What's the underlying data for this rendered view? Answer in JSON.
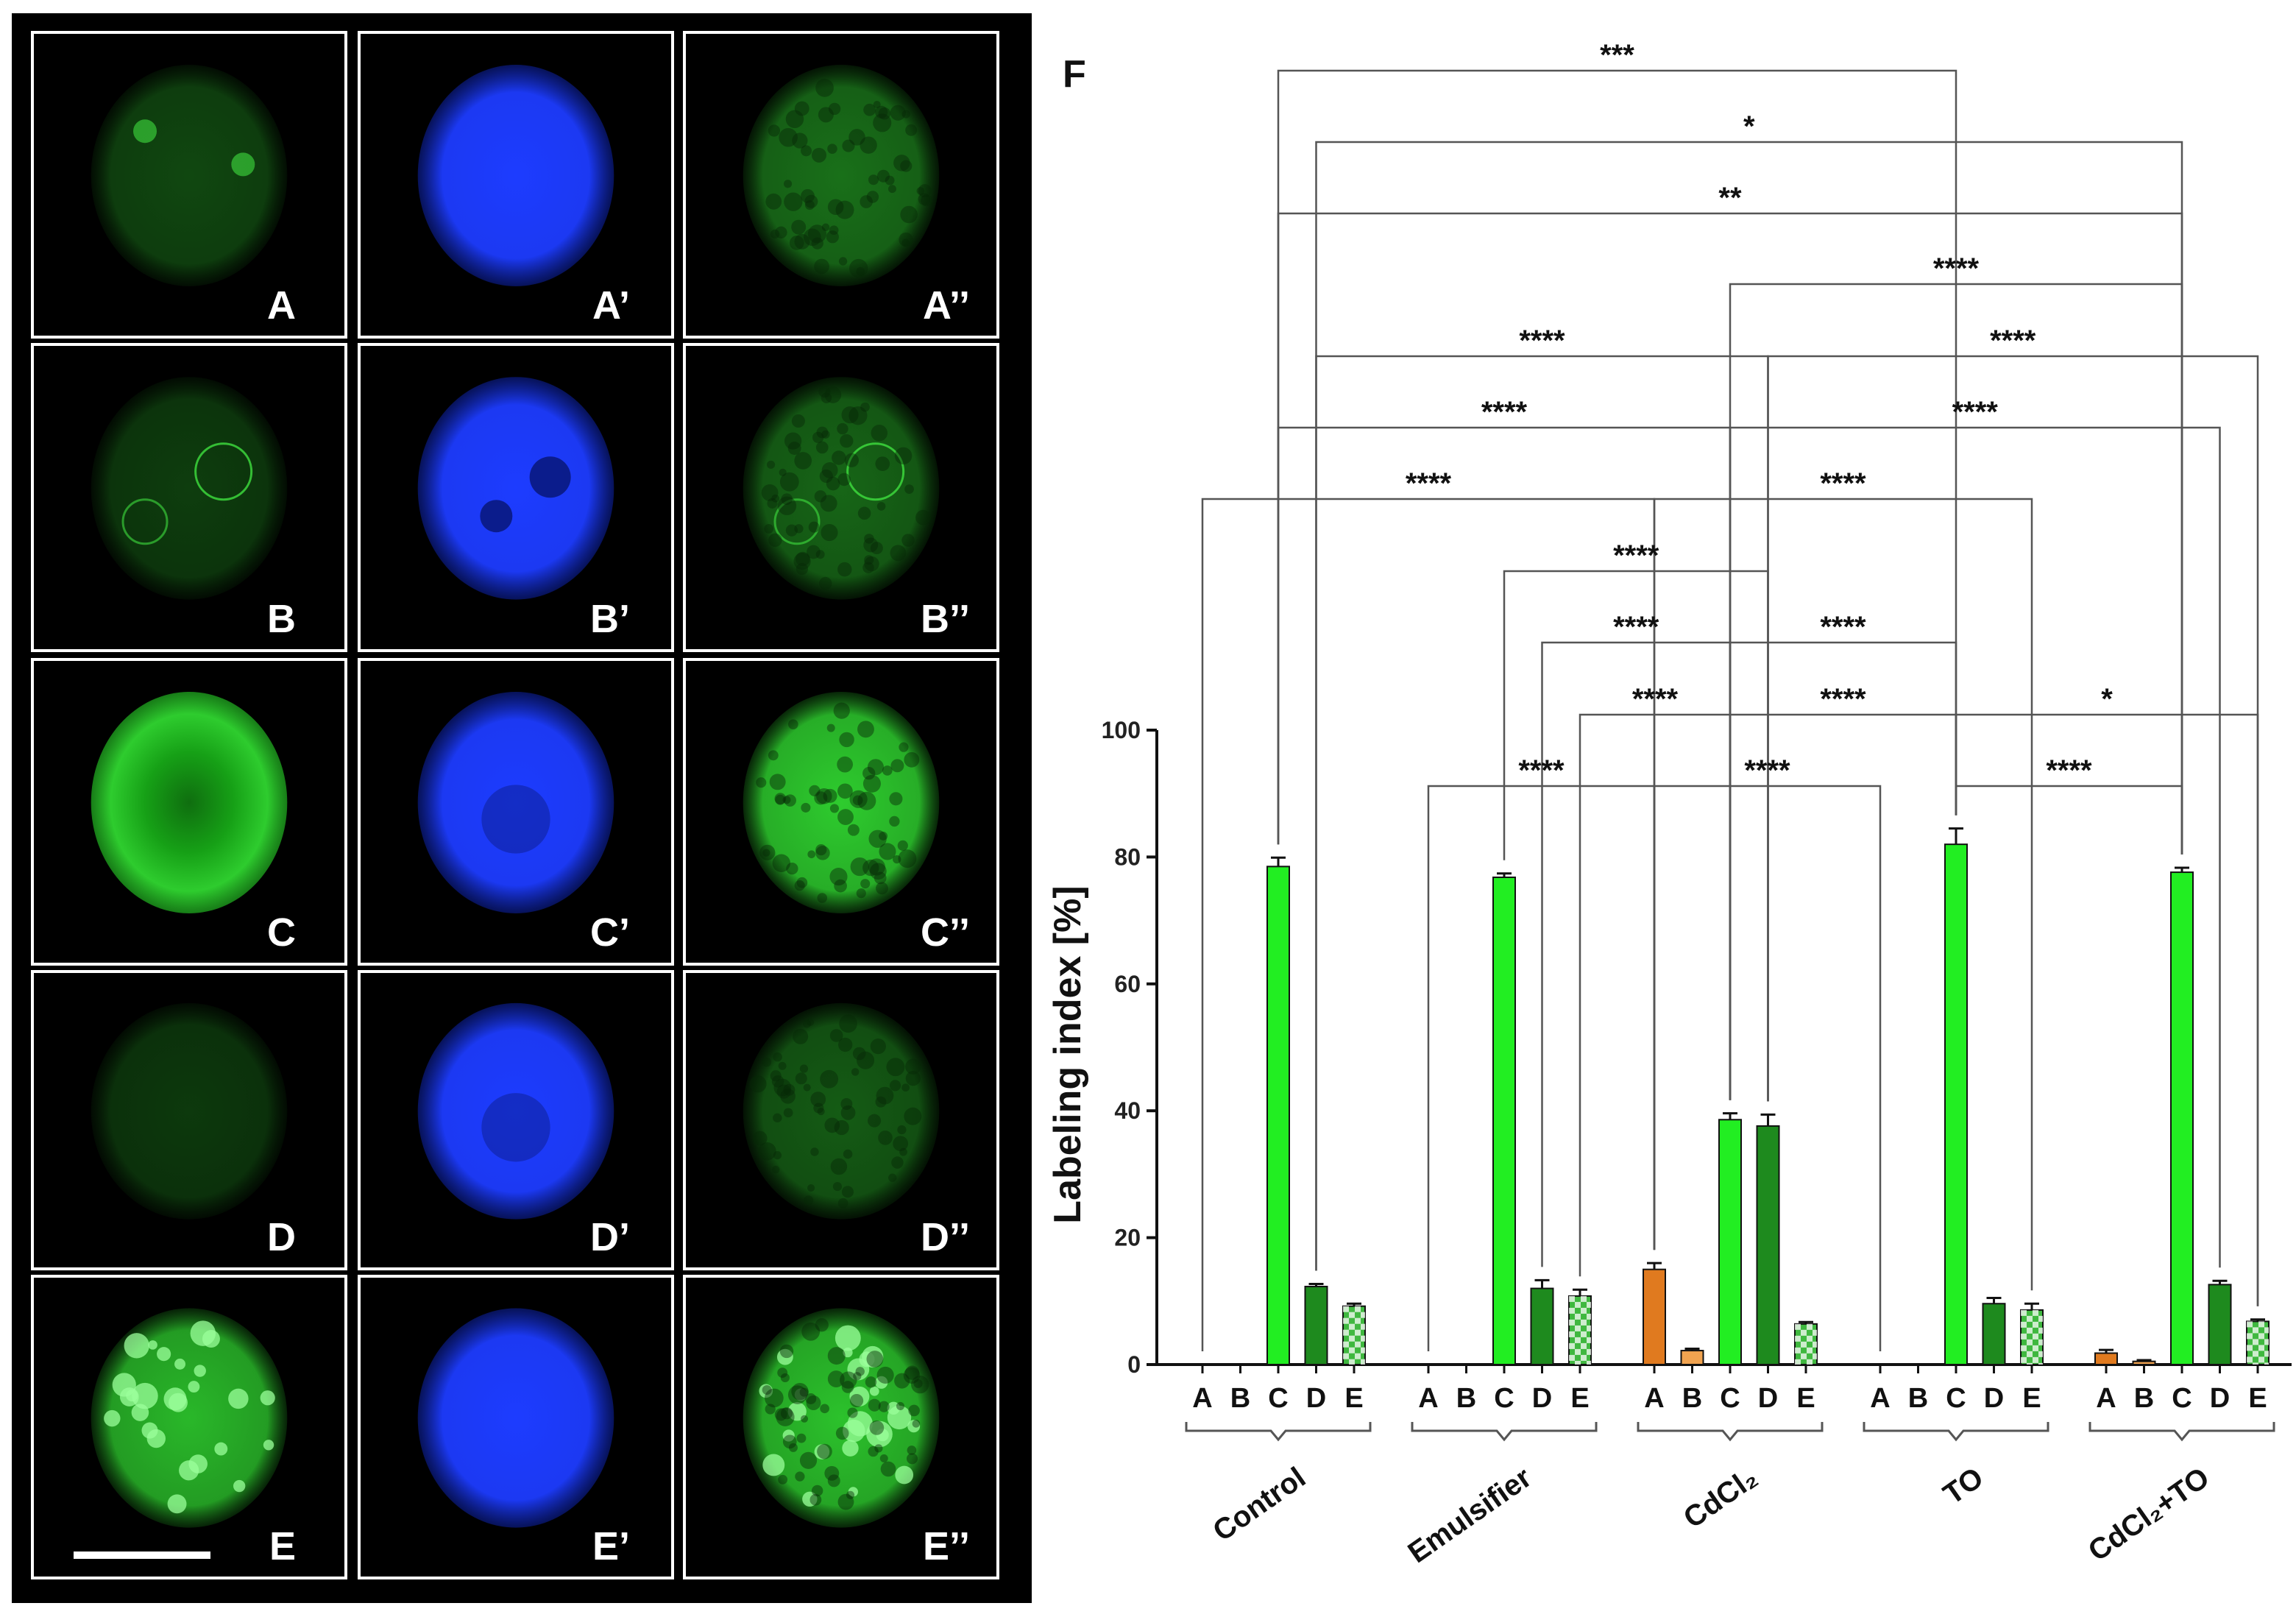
{
  "micrographs": {
    "rows": [
      {
        "labels": [
          "A",
          "A’",
          "A’’"
        ]
      },
      {
        "labels": [
          "B",
          "B’",
          "B’’"
        ]
      },
      {
        "labels": [
          "C",
          "C’",
          "C’’"
        ]
      },
      {
        "labels": [
          "D",
          "D’",
          "D’’"
        ]
      },
      {
        "labels": [
          "E",
          "E’",
          "E’’"
        ]
      }
    ],
    "colors": {
      "fitc_green": "#2ecc2e",
      "dapi_blue": "#1d3cff",
      "background": "#000000"
    }
  },
  "chart_data": {
    "type": "bar",
    "panel_label": "F",
    "ylabel": "Labeling index [%]",
    "ylim": [
      0,
      100
    ],
    "yticks": [
      0,
      20,
      40,
      60,
      80,
      100
    ],
    "groups": [
      "Control",
      "Emulsifier",
      "CdCl₂",
      "TO",
      "CdCl₂+TO"
    ],
    "categories": [
      "A",
      "B",
      "C",
      "D",
      "E"
    ],
    "values": [
      [
        0,
        0,
        78.5,
        12.3,
        9.2
      ],
      [
        0,
        0,
        76.8,
        12.0,
        10.8
      ],
      [
        15.0,
        2.2,
        38.6,
        37.6,
        6.4
      ],
      [
        0,
        0,
        82.0,
        9.6,
        8.6
      ],
      [
        1.8,
        0.5,
        77.6,
        12.6,
        6.8
      ]
    ],
    "errors": [
      [
        0,
        0,
        1.4,
        0.4,
        0.4
      ],
      [
        0,
        0,
        0.6,
        1.3,
        1.0
      ],
      [
        1.0,
        0.3,
        1.0,
        1.8,
        0.3
      ],
      [
        0,
        0,
        2.5,
        0.9,
        1.0
      ],
      [
        0.5,
        0.2,
        0.7,
        0.6,
        0.3
      ]
    ],
    "category_colors": {
      "A": "#e07a1f",
      "B": "#f0a350",
      "C": "#22ee22",
      "D": "#1e8a1e",
      "E": "#3fb83f"
    },
    "significance": [
      {
        "from": [
          0,
          2
        ],
        "to": [
          3,
          2
        ],
        "label": "***"
      },
      {
        "from": [
          0,
          3
        ],
        "to": [
          4,
          2
        ],
        "label": "*"
      },
      {
        "from": [
          0,
          2
        ],
        "to": [
          4,
          2
        ],
        "label": "**"
      },
      {
        "from": [
          2,
          2
        ],
        "to": [
          4,
          2
        ],
        "label": "****"
      },
      {
        "from": [
          0,
          3
        ],
        "to": [
          2,
          3
        ],
        "label": "****"
      },
      {
        "from": [
          2,
          3
        ],
        "to": [
          4,
          4
        ],
        "label": "****"
      },
      {
        "from": [
          0,
          2
        ],
        "to": [
          2,
          2
        ],
        "label": "****"
      },
      {
        "from": [
          2,
          2
        ],
        "to": [
          4,
          3
        ],
        "label": "****"
      },
      {
        "from": [
          0,
          0
        ],
        "to": [
          2,
          0
        ],
        "label": "****"
      },
      {
        "from": [
          2,
          0
        ],
        "to": [
          3,
          4
        ],
        "label": "****"
      },
      {
        "from": [
          1,
          2
        ],
        "to": [
          2,
          3
        ],
        "label": "****"
      },
      {
        "from": [
          1,
          3
        ],
        "to": [
          2,
          2
        ],
        "label": "****"
      },
      {
        "from": [
          2,
          2
        ],
        "to": [
          3,
          2
        ],
        "label": "****"
      },
      {
        "from": [
          1,
          4
        ],
        "to": [
          2,
          2
        ],
        "label": "****"
      },
      {
        "from": [
          2,
          2
        ],
        "to": [
          3,
          2
        ],
        "label": "****"
      },
      {
        "from": [
          3,
          2
        ],
        "to": [
          4,
          4
        ],
        "label": "*"
      },
      {
        "from": [
          1,
          0
        ],
        "to": [
          2,
          0
        ],
        "label": "****"
      },
      {
        "from": [
          2,
          0
        ],
        "to": [
          3,
          0
        ],
        "label": "****"
      },
      {
        "from": [
          3,
          2
        ],
        "to": [
          4,
          2
        ],
        "label": "****"
      }
    ]
  }
}
